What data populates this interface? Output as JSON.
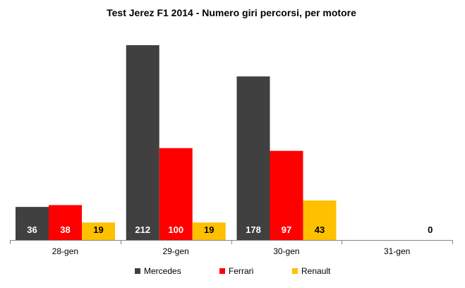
{
  "chart_data": {
    "type": "bar",
    "title": "Test Jerez F1 2014 - Numero giri percorsi, per motore",
    "xlabel": "",
    "ylabel": "",
    "ylim": [
      0,
      230
    ],
    "grid": false,
    "legend_position": "bottom",
    "categories": [
      "28-gen",
      "29-gen",
      "30-gen",
      "31-gen"
    ],
    "series": [
      {
        "name": "Mercedes",
        "color": "#404040",
        "label_color": "#ffffff",
        "values": [
          36,
          212,
          178,
          null
        ],
        "labels": [
          "36",
          "212",
          "178",
          ""
        ]
      },
      {
        "name": "Ferrari",
        "color": "#ff0000",
        "label_color": "#ffffff",
        "values": [
          38,
          100,
          97,
          null
        ],
        "labels": [
          "38",
          "100",
          "97",
          ""
        ]
      },
      {
        "name": "Renault",
        "color": "#ffc000",
        "label_color": "#000000",
        "values": [
          19,
          19,
          43,
          0
        ],
        "labels": [
          "19",
          "19",
          "43",
          "0"
        ]
      }
    ]
  }
}
